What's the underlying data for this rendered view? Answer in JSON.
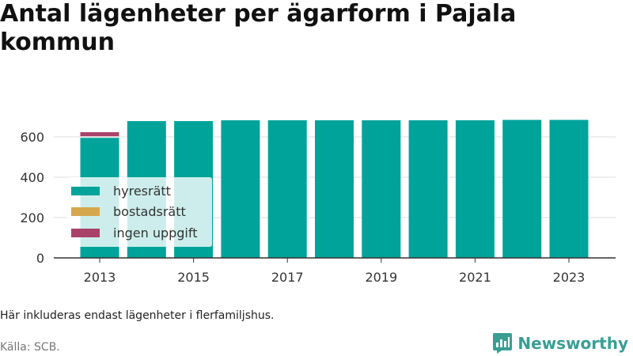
{
  "title": "Antal lägenheter per ägarform i Pajala kommun",
  "note": "Här inkluderas endast lägenheter i flerfamiljshus.",
  "source": "Källa: SCB.",
  "brand": {
    "name": "Newsworthy",
    "icon": "newsworthy-logo-icon",
    "color": "#3a9e93"
  },
  "colors": {
    "hyresratt": "#00a39a",
    "bostadsratt": "#d6a84e",
    "ingen_uppgift": "#a8426a"
  },
  "chart_data": {
    "type": "bar",
    "stacked": true,
    "categories": [
      "2013",
      "2014",
      "2015",
      "2016",
      "2017",
      "2018",
      "2019",
      "2020",
      "2021",
      "2022",
      "2023"
    ],
    "x_tick_labels": [
      "2013",
      "2015",
      "2017",
      "2019",
      "2021",
      "2023"
    ],
    "y_ticks": [
      0,
      200,
      400,
      600
    ],
    "ylim": [
      0,
      720
    ],
    "grid": true,
    "legend_position": "bottom-left",
    "series": [
      {
        "name": "hyresrätt",
        "color": "#00a39a",
        "values": [
          595,
          678,
          678,
          682,
          682,
          682,
          682,
          682,
          682,
          684,
          684
        ]
      },
      {
        "name": "bostadsrätt",
        "color": "#d6a84e",
        "values": [
          0,
          0,
          0,
          0,
          0,
          0,
          0,
          0,
          0,
          0,
          0
        ]
      },
      {
        "name": "ingen uppgift",
        "color": "#a8426a",
        "values": [
          28,
          0,
          0,
          0,
          0,
          0,
          0,
          0,
          0,
          0,
          0
        ]
      }
    ]
  }
}
